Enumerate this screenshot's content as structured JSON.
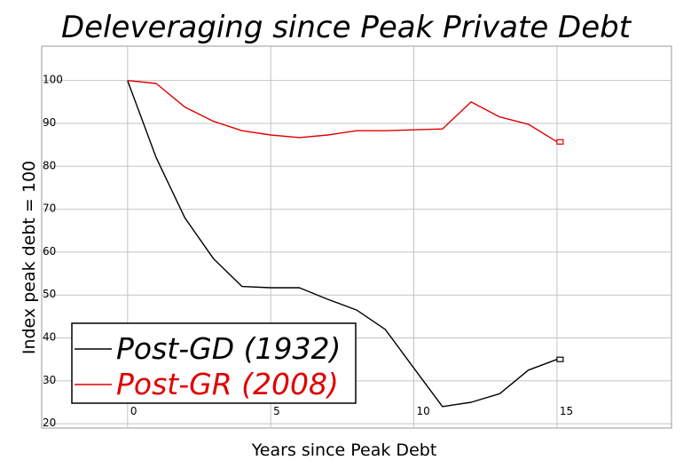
{
  "chart_data": {
    "type": "line",
    "title": "Deleveraging since Peak Private Debt",
    "xlabel": "Years since Peak Debt",
    "ylabel": "Index peak debt = 100",
    "xlim": [
      -3,
      19
    ],
    "ylim": [
      19,
      108
    ],
    "x_ticks": [
      0,
      5,
      10,
      15
    ],
    "y_ticks": [
      20,
      30,
      40,
      50,
      60,
      70,
      80,
      90,
      100
    ],
    "grid": true,
    "legend_position": "bottom-left",
    "series": [
      {
        "name": "Post-GD (1932)",
        "color": "#000000",
        "x": [
          0,
          1,
          2,
          3,
          4,
          5,
          6,
          7,
          8,
          9,
          10,
          11,
          12,
          13,
          14,
          15
        ],
        "values": [
          100,
          82,
          68,
          58.5,
          52,
          51.7,
          51.7,
          49,
          46.5,
          42,
          33,
          24,
          25,
          27,
          32.5,
          35
        ]
      },
      {
        "name": "Post-GR (2008)",
        "color": "#e00000",
        "x": [
          0,
          1,
          2,
          3,
          4,
          5,
          6,
          7,
          8,
          9,
          10,
          11,
          12,
          13,
          14,
          15
        ],
        "values": [
          100,
          99.3,
          93.8,
          90.5,
          88.3,
          87.3,
          86.7,
          87.3,
          88.3,
          88.3,
          88.5,
          88.7,
          95,
          91.5,
          89.8,
          85.7
        ]
      }
    ]
  }
}
